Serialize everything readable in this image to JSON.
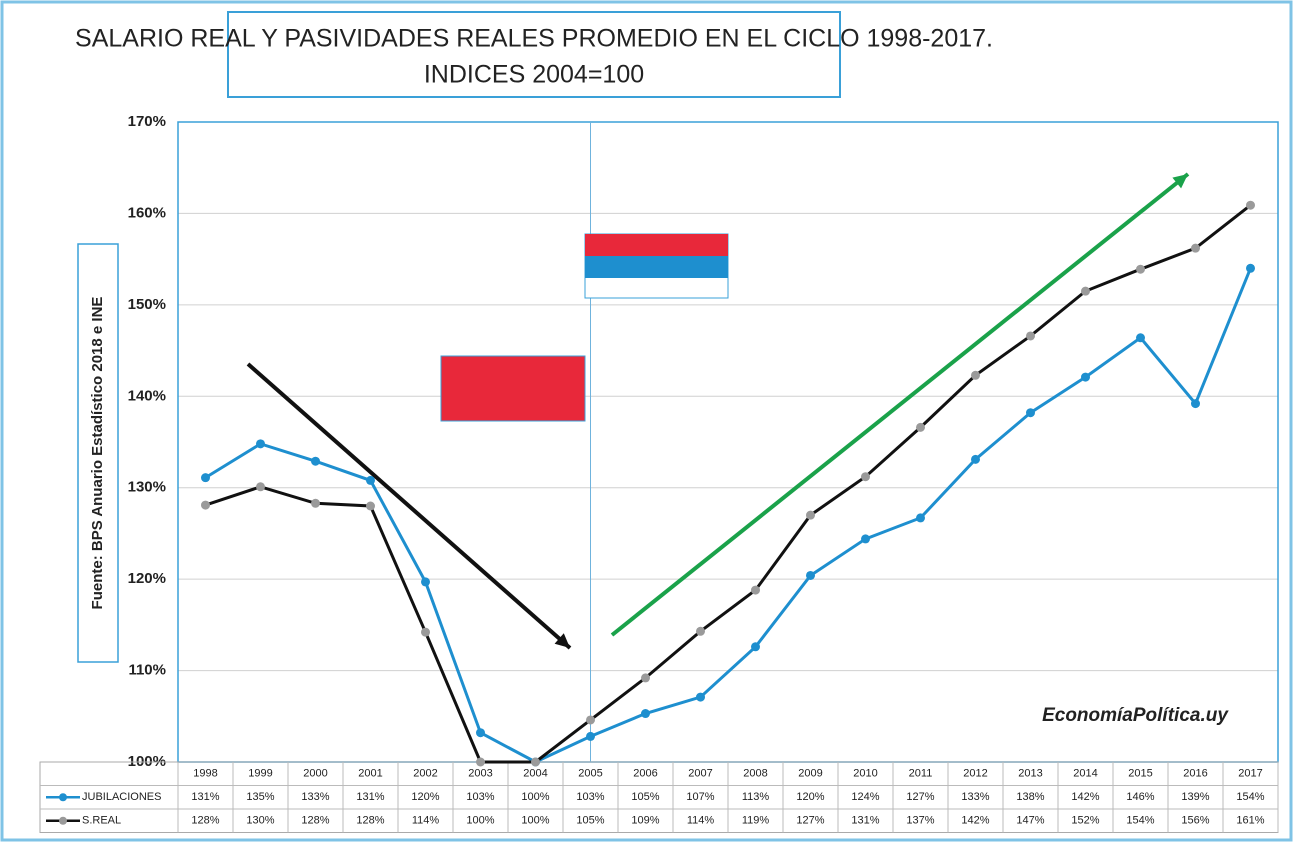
{
  "chart_data": {
    "type": "line",
    "title": "SALARIO REAL Y PASIVIDADES REALES PROMEDIO EN EL CICLO 1998-2017.",
    "subtitle": "INDICES 2004=100",
    "y_label": "Fuente: BPS Anuario Estadístico 2018 e INE",
    "watermark": "EconomíaPolítica.uy",
    "categories": [
      "1998",
      "1999",
      "2000",
      "2001",
      "2002",
      "2003",
      "2004",
      "2005",
      "2006",
      "2007",
      "2008",
      "2009",
      "2010",
      "2011",
      "2012",
      "2013",
      "2014",
      "2015",
      "2016",
      "2017"
    ],
    "series": [
      {
        "name": "JUBILACIONES",
        "color": "#1e8fcf",
        "marker_color": "#1e8fcf",
        "values": [
          131.1,
          134.8,
          132.9,
          130.8,
          119.7,
          103.2,
          100,
          102.8,
          105.3,
          107.1,
          112.6,
          120.4,
          124.4,
          126.7,
          133.1,
          138.2,
          142.1,
          146.4,
          139.2,
          154.0
        ],
        "value_labels": [
          "131%",
          "135%",
          "133%",
          "131%",
          "120%",
          "103%",
          "100%",
          "103%",
          "105%",
          "107%",
          "113%",
          "120%",
          "124%",
          "127%",
          "133%",
          "138%",
          "142%",
          "146%",
          "139%",
          "154%"
        ]
      },
      {
        "name": "S.REAL",
        "color": "#111111",
        "marker_color": "#9a9a9a",
        "values": [
          128.1,
          130.1,
          128.3,
          128.0,
          114.2,
          100,
          100,
          104.6,
          109.2,
          114.3,
          118.8,
          127.0,
          131.2,
          136.6,
          142.3,
          146.6,
          151.5,
          153.9,
          156.2,
          160.9
        ],
        "value_labels": [
          "128%",
          "130%",
          "128%",
          "128%",
          "114%",
          "100%",
          "100%",
          "105%",
          "109%",
          "114%",
          "119%",
          "127%",
          "131%",
          "137%",
          "142%",
          "147%",
          "152%",
          "154%",
          "156%",
          "161%"
        ]
      }
    ],
    "ylim": [
      100,
      170
    ],
    "yticks": [
      {
        "value": 100,
        "label": "100%"
      },
      {
        "value": 110,
        "label": "110%"
      },
      {
        "value": 120,
        "label": "120%"
      },
      {
        "value": 130,
        "label": "130%"
      },
      {
        "value": 140,
        "label": "140%"
      },
      {
        "value": 150,
        "label": "150%"
      },
      {
        "value": 160,
        "label": "160%"
      },
      {
        "value": 170,
        "label": "170%"
      }
    ],
    "grid": true
  }
}
